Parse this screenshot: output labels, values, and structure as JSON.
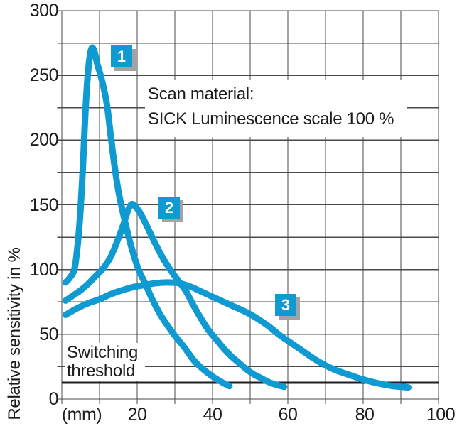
{
  "annotation": {
    "line1": "Scan material:",
    "line2": "SICK Luminescence scale 100 %"
  },
  "threshold_text": {
    "line1": "Switching",
    "line2": "threshold"
  },
  "axes": {
    "y_title": "Relative sensitivity in %",
    "y_ticks": [
      "300",
      "250",
      "200",
      "150",
      "100",
      "50",
      "0"
    ],
    "x_ticks": [
      "(mm)",
      "20",
      "40",
      "60",
      "80",
      "100"
    ]
  },
  "curve_labels": [
    "1",
    "2",
    "3"
  ],
  "colors": {
    "curve": "#0f9ad2",
    "label_box": "#0f9ad2",
    "label_box_shadow": "#a3a3a3",
    "label_text": "#ffffff",
    "grid": "#4a4a4a",
    "threshold_line": "#1f1f1f",
    "text": "#1c1c1c"
  },
  "chart_data": {
    "type": "line",
    "title": "Scan material: SICK Luminescence scale 100 %",
    "xlabel": "(mm)",
    "ylabel": "Relative sensitivity in %",
    "xlim": [
      0,
      100
    ],
    "ylim": [
      0,
      300
    ],
    "grid": true,
    "x_grid_step": 10,
    "y_grid_step": 25,
    "x_labeled_ticks": [
      20,
      40,
      60,
      80,
      100
    ],
    "y_labeled_ticks": [
      0,
      50,
      100,
      150,
      200,
      250,
      300
    ],
    "threshold": {
      "label": "Switching threshold",
      "value": 12.5
    },
    "series": [
      {
        "name": "1",
        "peak": [
          8,
          270
        ],
        "points": [
          [
            1,
            90
          ],
          [
            2.2,
            94
          ],
          [
            3.4,
            101
          ],
          [
            4.3,
            122
          ],
          [
            5,
            148
          ],
          [
            5.6,
            180
          ],
          [
            6.1,
            212
          ],
          [
            6.7,
            243
          ],
          [
            7.3,
            262
          ],
          [
            7.9,
            271
          ],
          [
            8.6,
            269
          ],
          [
            9.4,
            259
          ],
          [
            10.3,
            250
          ],
          [
            11.2,
            239
          ],
          [
            12,
            227
          ],
          [
            13,
            203
          ],
          [
            14,
            180
          ],
          [
            15,
            161
          ],
          [
            16,
            147
          ],
          [
            17.5,
            128
          ],
          [
            19,
            112
          ],
          [
            20.5,
            99
          ],
          [
            22,
            90
          ],
          [
            24,
            77
          ],
          [
            26,
            66
          ],
          [
            28,
            57
          ],
          [
            30,
            49
          ],
          [
            32.5,
            40
          ],
          [
            35,
            30
          ],
          [
            37.5,
            23
          ],
          [
            40,
            17.5
          ],
          [
            42.5,
            13
          ],
          [
            44.5,
            10
          ]
        ]
      },
      {
        "name": "2",
        "peak": [
          18.5,
          150
        ],
        "points": [
          [
            1,
            76
          ],
          [
            3,
            80
          ],
          [
            5,
            84
          ],
          [
            7,
            89
          ],
          [
            9,
            95
          ],
          [
            11,
            101
          ],
          [
            13,
            110
          ],
          [
            15,
            124
          ],
          [
            16.5,
            136
          ],
          [
            17.6,
            146
          ],
          [
            18.5,
            150.5
          ],
          [
            19.4,
            149
          ],
          [
            20.3,
            146
          ],
          [
            21.5,
            140
          ],
          [
            23,
            131
          ],
          [
            25,
            119
          ],
          [
            27,
            108
          ],
          [
            29,
            99
          ],
          [
            31,
            91
          ],
          [
            33,
            83
          ],
          [
            35,
            72
          ],
          [
            37,
            62
          ],
          [
            39,
            53
          ],
          [
            41,
            46
          ],
          [
            43,
            39
          ],
          [
            45,
            33
          ],
          [
            47,
            28
          ],
          [
            49,
            23
          ],
          [
            51,
            19
          ],
          [
            53,
            16
          ],
          [
            55,
            13
          ],
          [
            57,
            11
          ],
          [
            59,
            9.5
          ]
        ]
      },
      {
        "name": "3",
        "peak": [
          28,
          90
        ],
        "points": [
          [
            1,
            65
          ],
          [
            4,
            70
          ],
          [
            7,
            74
          ],
          [
            10,
            77
          ],
          [
            13,
            81
          ],
          [
            16,
            84
          ],
          [
            19,
            86.5
          ],
          [
            22,
            88
          ],
          [
            25,
            89.5
          ],
          [
            28,
            90
          ],
          [
            31,
            89.5
          ],
          [
            34,
            87
          ],
          [
            37,
            83
          ],
          [
            40,
            79
          ],
          [
            43,
            75
          ],
          [
            46,
            71
          ],
          [
            49,
            67
          ],
          [
            52,
            62
          ],
          [
            55,
            56
          ],
          [
            58,
            49
          ],
          [
            61,
            43
          ],
          [
            64,
            37
          ],
          [
            67,
            31
          ],
          [
            70,
            26
          ],
          [
            73,
            22
          ],
          [
            76,
            19
          ],
          [
            79,
            16
          ],
          [
            82,
            13.5
          ],
          [
            85,
            11.5
          ],
          [
            88,
            10
          ],
          [
            90,
            9.5
          ],
          [
            92,
            9
          ]
        ]
      }
    ]
  }
}
